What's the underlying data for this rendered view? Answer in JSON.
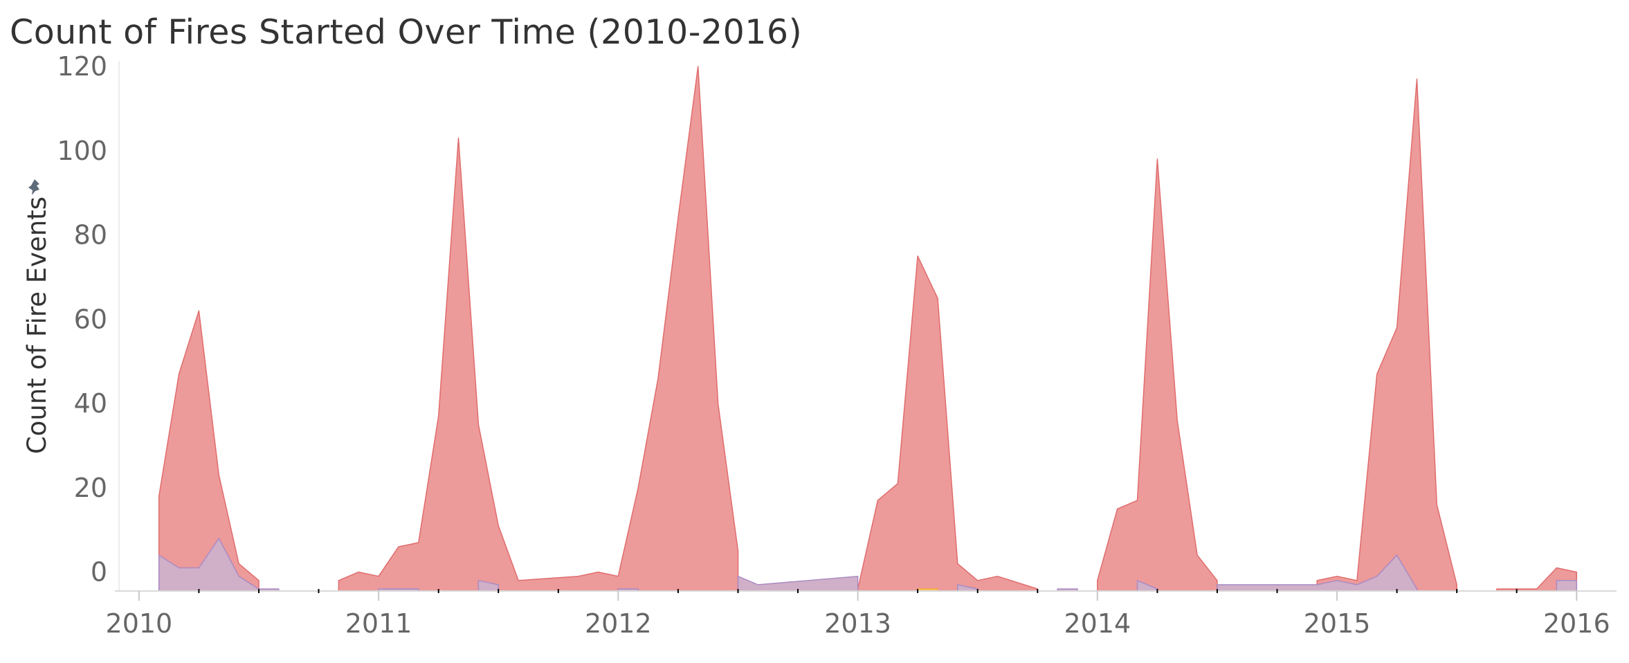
{
  "title": "Count of Fires Started Over Time (2010-2016)",
  "chart_data": {
    "type": "area",
    "title": "Count of Fires Started Over Time (2010-2016)",
    "xlabel": "",
    "ylabel": "Count of Fire Events",
    "x_ticks": [
      "2010",
      "2011",
      "2012",
      "2013",
      "2014",
      "2015",
      "2016"
    ],
    "y_ticks": [
      "0",
      "20",
      "40",
      "60",
      "80",
      "100",
      "120"
    ],
    "ylim": [
      -4.5,
      120
    ],
    "xlim": [
      "2009-12",
      "2016-03"
    ],
    "grid": false,
    "series": [
      {
        "color": "#ed9a9a",
        "stroke": "#e06c6c",
        "segments": [
          [
            [
              "2010-02",
              18
            ],
            [
              "2010-03",
              47
            ],
            [
              "2010-04",
              62
            ],
            [
              "2010-05",
              23
            ],
            [
              "2010-06",
              2
            ],
            [
              "2010-07",
              -2
            ]
          ],
          [
            [
              "2010-11",
              -2
            ],
            [
              "2010-12",
              0
            ],
            [
              "2011-01",
              -1
            ],
            [
              "2011-02",
              6
            ],
            [
              "2011-03",
              7
            ],
            [
              "2011-04",
              37
            ],
            [
              "2011-05",
              103
            ],
            [
              "2011-06",
              35
            ],
            [
              "2011-07",
              11
            ],
            [
              "2011-08",
              -2
            ],
            [
              "2011-11",
              -1
            ],
            [
              "2011-12",
              0
            ],
            [
              "2012-01",
              -1
            ],
            [
              "2012-02",
              20
            ],
            [
              "2012-03",
              46
            ],
            [
              "2012-04",
              84
            ],
            [
              "2012-05",
              120
            ],
            [
              "2012-06",
              40
            ],
            [
              "2012-07",
              5
            ]
          ],
          [
            [
              "2013-01",
              -4
            ],
            [
              "2013-02",
              17
            ],
            [
              "2013-03",
              21
            ],
            [
              "2013-04",
              75
            ],
            [
              "2013-05",
              65
            ],
            [
              "2013-06",
              2
            ],
            [
              "2013-07",
              -2
            ],
            [
              "2013-08",
              -1
            ],
            [
              "2013-10",
              -4
            ]
          ],
          [
            [
              "2014-01",
              -2
            ],
            [
              "2014-02",
              15
            ],
            [
              "2014-03",
              17
            ],
            [
              "2014-04",
              98
            ],
            [
              "2014-05",
              36
            ],
            [
              "2014-06",
              4
            ],
            [
              "2014-07",
              -2
            ]
          ],
          [
            [
              "2014-12",
              -2
            ],
            [
              "2015-01",
              -1
            ],
            [
              "2015-02",
              -2
            ],
            [
              "2015-03",
              47
            ],
            [
              "2015-04",
              58
            ],
            [
              "2015-05",
              117
            ],
            [
              "2015-06",
              16
            ],
            [
              "2015-07",
              -3
            ]
          ],
          [
            [
              "2015-09",
              -4
            ],
            [
              "2015-10",
              -4
            ],
            [
              "2015-11",
              -4
            ],
            [
              "2015-12",
              1
            ],
            [
              "2016-01",
              0
            ]
          ]
        ]
      },
      {
        "color": "#d0b0c8",
        "stroke": "#a98bc4",
        "segments": [
          [
            [
              "2010-02",
              4
            ],
            [
              "2010-03",
              1
            ],
            [
              "2010-04",
              1
            ],
            [
              "2010-05",
              8
            ],
            [
              "2010-06",
              -1
            ],
            [
              "2010-07",
              -4
            ],
            [
              "2010-08",
              -4
            ]
          ],
          [
            [
              "2011-01",
              -4
            ],
            [
              "2011-02",
              -4
            ],
            [
              "2011-03",
              -4
            ]
          ],
          [
            [
              "2011-06",
              -2
            ],
            [
              "2011-07",
              -3
            ]
          ],
          [
            [
              "2012-01",
              -4
            ],
            [
              "2012-02",
              -4
            ]
          ],
          [
            [
              "2012-07",
              -1
            ],
            [
              "2012-08",
              -3
            ],
            [
              "2013-01",
              -1
            ]
          ],
          [
            [
              "2013-06",
              -3
            ],
            [
              "2013-07",
              -4
            ]
          ],
          [
            [
              "2013-11",
              -4
            ],
            [
              "2013-12",
              -4
            ]
          ],
          [
            [
              "2014-03",
              -2
            ],
            [
              "2014-04",
              -4
            ]
          ],
          [
            [
              "2014-07",
              -3
            ],
            [
              "2014-08",
              -3
            ],
            [
              "2014-09",
              -3
            ],
            [
              "2014-12",
              -3
            ],
            [
              "2015-01",
              -2
            ],
            [
              "2015-02",
              -3
            ],
            [
              "2015-03",
              -1
            ],
            [
              "2015-04",
              4
            ],
            [
              "2015-05",
              -4
            ]
          ],
          [
            [
              "2015-12",
              -2
            ],
            [
              "2016-01",
              -2
            ]
          ]
        ]
      },
      {
        "color": "#f6c76a",
        "stroke": "#f0b040",
        "segments": [
          [
            [
              "2013-04",
              -4
            ],
            [
              "2013-05",
              -4
            ]
          ]
        ]
      }
    ]
  }
}
